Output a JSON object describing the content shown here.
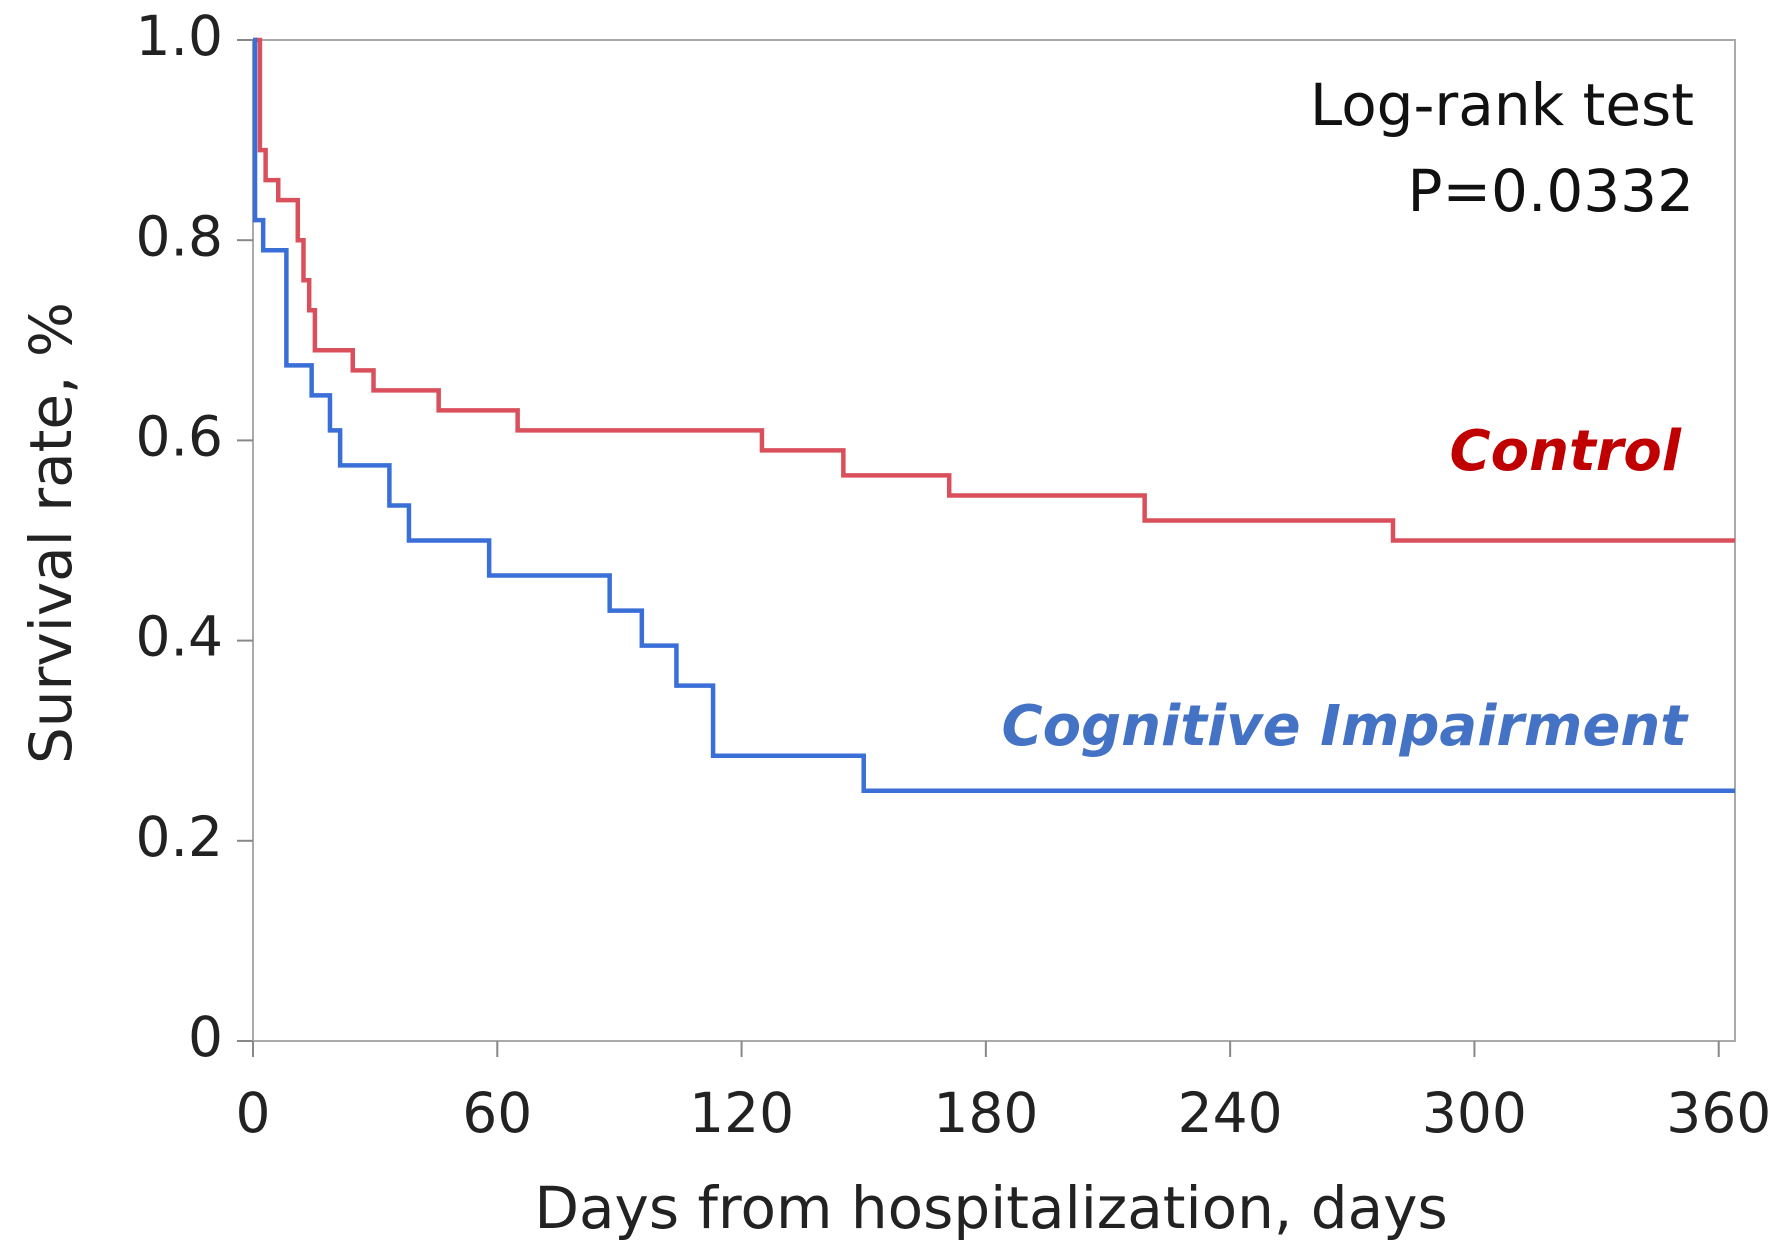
{
  "chart_data": {
    "type": "line",
    "step": "post",
    "x_label": "Days from hospitalization, days",
    "y_label": "Survival rate, %",
    "annotations": [
      "Log-rank test",
      "P=0.0332"
    ],
    "xlim": [
      0,
      364
    ],
    "xticks": [
      0,
      60,
      120,
      180,
      240,
      300,
      360
    ],
    "ylim": [
      0,
      1
    ],
    "yticks": [
      0,
      0.2,
      0.4,
      0.6,
      0.8,
      {
        "value": 1,
        "label": "1.0"
      }
    ],
    "series": [
      {
        "name": "Control",
        "color": "#d9505c",
        "label_color": "#c00000",
        "x": [
          0,
          1.7,
          3.1,
          6.2,
          11,
          12.4,
          13.8,
          15.2,
          24.5,
          29.6,
          45.6,
          65,
          125,
          145,
          171,
          219,
          280,
          364
        ],
        "values": [
          1,
          0.89,
          0.86,
          0.84,
          0.8,
          0.76,
          0.73,
          0.69,
          0.67,
          0.65,
          0.63,
          0.61,
          0.59,
          0.565,
          0.545,
          0.52,
          0.5,
          0.5
        ]
      },
      {
        "name": "Cognitive Impairment",
        "color": "#3a6fd8",
        "label_color": "#4472c4",
        "x": [
          0,
          0.5,
          2.5,
          8.2,
          14.4,
          18.9,
          21.4,
          33.5,
          38.3,
          58,
          87.6,
          95.5,
          104,
          113,
          150,
          364
        ],
        "values": [
          1,
          0.82,
          0.79,
          0.675,
          0.645,
          0.61,
          0.575,
          0.535,
          0.5,
          0.465,
          0.43,
          0.395,
          0.355,
          0.285,
          0.25,
          0.25
        ]
      }
    ]
  }
}
